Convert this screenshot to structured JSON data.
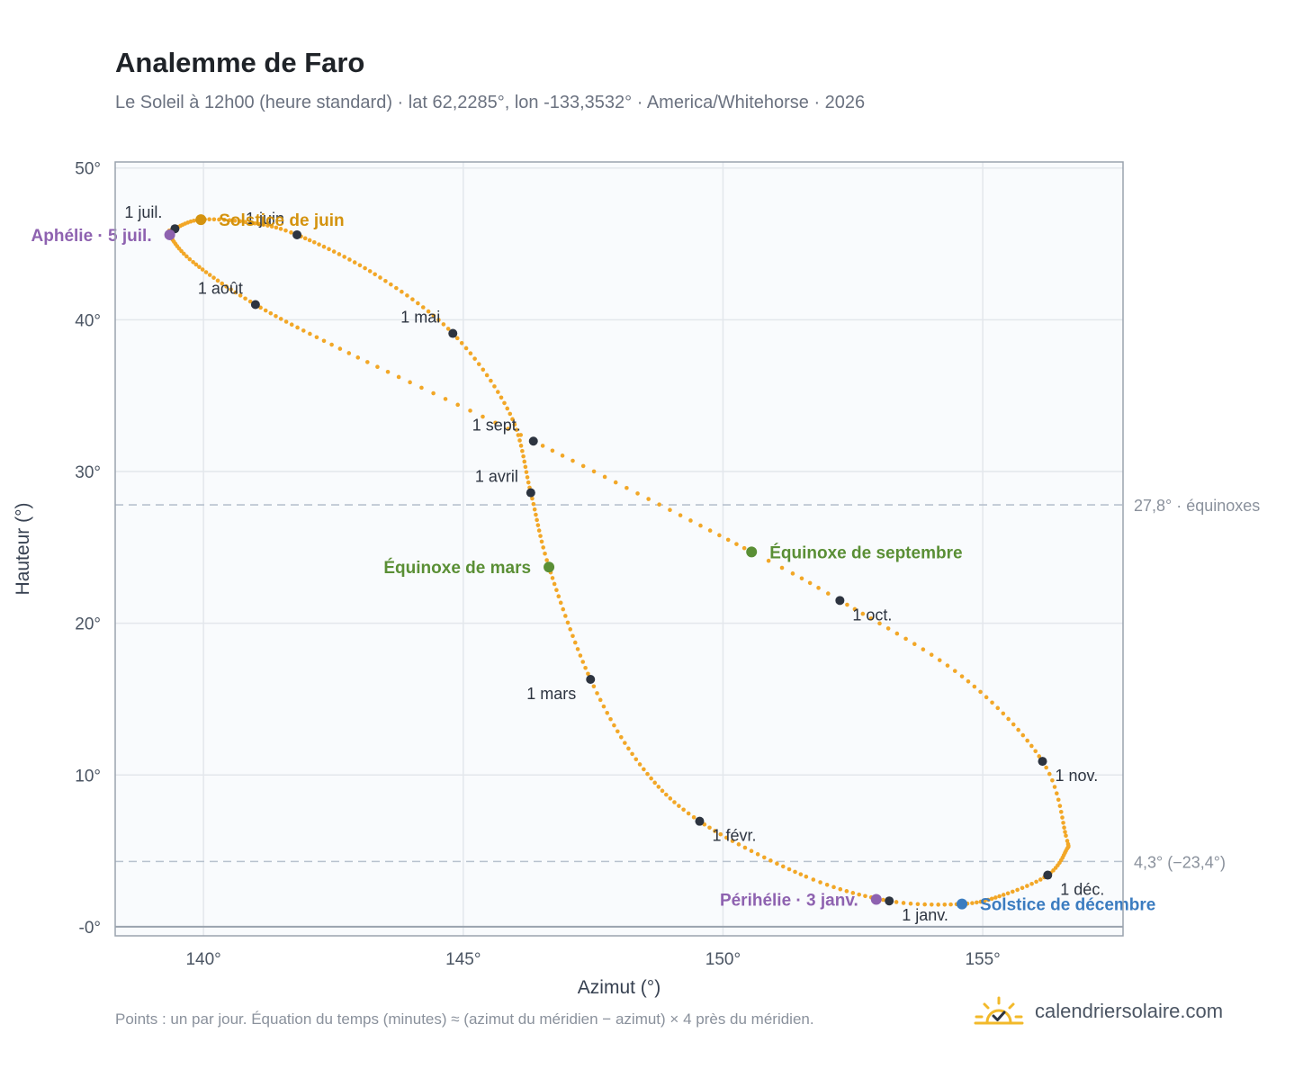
{
  "title": "Analemme de Faro",
  "subtitle": "Le Soleil à 12h00 (heure standard) · lat 62,2285°, lon -133,3532° · America/Whitehorse · 2026",
  "footnote": "Points : un par jour. Équation du temps (minutes) ≈ (azimut du méridien − azimut) × 4 près du méridien.",
  "brand": {
    "name": "calendriersolaire.com",
    "icon": "sun-check-icon"
  },
  "colors": {
    "curve": "#f2a727",
    "month_marker": "#2d3440",
    "solstice_june": "#d4930f",
    "solstice_december": "#3b7cc0",
    "equinox": "#5a8f35",
    "apsis": "#8e62b0",
    "reference_line": "#b8c2ce",
    "plot_bg": "#f9fbfd",
    "grid": "#e3e7ec"
  },
  "chart_data": {
    "type": "scatter",
    "title": "Analemme de Faro",
    "xlabel": "Azimut (°)",
    "ylabel": "Hauteur (°)",
    "xlim": [
      138.3,
      157.7
    ],
    "ylim": [
      -0.6,
      50.4
    ],
    "xticks": [
      140,
      145,
      150,
      155
    ],
    "xtick_labels": [
      "140°",
      "145°",
      "150°",
      "155°"
    ],
    "yticks": [
      0,
      10,
      20,
      30,
      40,
      50
    ],
    "ytick_labels": [
      "-0°",
      "10°",
      "20°",
      "30°",
      "40°",
      "50°"
    ],
    "grid": true,
    "curve_anchors": [
      {
        "doy": 1,
        "az": 153.2,
        "alt": 1.7
      },
      {
        "doy": 14,
        "az": 151.6,
        "alt": 3.3
      },
      {
        "doy": 32,
        "az": 149.55,
        "alt": 6.95
      },
      {
        "doy": 46,
        "az": 148.4,
        "alt": 10.7
      },
      {
        "doy": 60,
        "az": 147.45,
        "alt": 16.3
      },
      {
        "doy": 78,
        "az": 146.65,
        "alt": 23.7
      },
      {
        "doy": 91,
        "az": 146.3,
        "alt": 28.6
      },
      {
        "doy": 106,
        "az": 145.9,
        "alt": 33.8
      },
      {
        "doy": 121,
        "az": 144.8,
        "alt": 39.1
      },
      {
        "doy": 136,
        "az": 143.3,
        "alt": 43.0
      },
      {
        "doy": 152,
        "az": 141.8,
        "alt": 45.6
      },
      {
        "doy": 162,
        "az": 140.9,
        "alt": 46.4
      },
      {
        "doy": 172,
        "az": 139.95,
        "alt": 46.6
      },
      {
        "doy": 182,
        "az": 139.45,
        "alt": 46.0
      },
      {
        "doy": 186,
        "az": 139.35,
        "alt": 45.6
      },
      {
        "doy": 198,
        "az": 139.8,
        "alt": 43.8
      },
      {
        "doy": 213,
        "az": 141.0,
        "alt": 41.0
      },
      {
        "doy": 228,
        "az": 142.8,
        "alt": 37.8
      },
      {
        "doy": 244,
        "az": 146.35,
        "alt": 32.0
      },
      {
        "doy": 266,
        "az": 150.55,
        "alt": 24.7
      },
      {
        "doy": 274,
        "az": 152.25,
        "alt": 21.5
      },
      {
        "doy": 289,
        "az": 154.6,
        "alt": 16.5
      },
      {
        "doy": 305,
        "az": 156.15,
        "alt": 10.9
      },
      {
        "doy": 318,
        "az": 156.6,
        "alt": 6.0
      },
      {
        "doy": 325,
        "az": 156.6,
        "alt": 5.0
      },
      {
        "doy": 335,
        "az": 156.25,
        "alt": 3.4
      },
      {
        "doy": 345,
        "az": 155.4,
        "alt": 2.1
      },
      {
        "doy": 355,
        "az": 154.6,
        "alt": 1.5
      },
      {
        "doy": 366,
        "az": 153.2,
        "alt": 1.7
      }
    ],
    "month_markers": [
      {
        "label": "1 janv.",
        "az": 153.2,
        "alt": 1.7,
        "pos": "below-right"
      },
      {
        "label": "1 févr.",
        "az": 149.55,
        "alt": 6.95,
        "pos": "below-right"
      },
      {
        "label": "1 mars",
        "az": 147.45,
        "alt": 16.3,
        "pos": "below-left"
      },
      {
        "label": "1 avril",
        "az": 146.3,
        "alt": 28.6,
        "pos": "above-left"
      },
      {
        "label": "1 mai",
        "az": 144.8,
        "alt": 39.1,
        "pos": "above-left"
      },
      {
        "label": "1 juin",
        "az": 141.8,
        "alt": 45.6,
        "pos": "above-left"
      },
      {
        "label": "1 juil.",
        "az": 139.45,
        "alt": 46.0,
        "pos": "above-left"
      },
      {
        "label": "1 août",
        "az": 141.0,
        "alt": 41.0,
        "pos": "above-left"
      },
      {
        "label": "1 sept.",
        "az": 146.35,
        "alt": 32.0,
        "pos": "above-left"
      },
      {
        "label": "1 oct.",
        "az": 152.25,
        "alt": 21.5,
        "pos": "below-right"
      },
      {
        "label": "1 nov.",
        "az": 156.15,
        "alt": 10.9,
        "pos": "below-right"
      },
      {
        "label": "1 déc.",
        "az": 156.25,
        "alt": 3.4,
        "pos": "below-right"
      }
    ],
    "events": [
      {
        "label": "Solstice de juin",
        "az": 139.95,
        "alt": 46.6,
        "color": "#d4930f",
        "side": "right"
      },
      {
        "label": "Aphélie · 5 juil.",
        "az": 139.35,
        "alt": 45.6,
        "color": "#8e62b0",
        "side": "left"
      },
      {
        "label": "Équinoxe de mars",
        "az": 146.65,
        "alt": 23.7,
        "color": "#5a8f35",
        "side": "left"
      },
      {
        "label": "Équinoxe de septembre",
        "az": 150.55,
        "alt": 24.7,
        "color": "#5a8f35",
        "side": "right"
      },
      {
        "label": "Périhélie · 3 janv.",
        "az": 152.95,
        "alt": 1.8,
        "color": "#8e62b0",
        "side": "left"
      },
      {
        "label": "Solstice de décembre",
        "az": 154.6,
        "alt": 1.5,
        "color": "#3b7cc0",
        "side": "right"
      }
    ],
    "reference_lines": [
      {
        "alt": 27.8,
        "label": "27,8° · équinoxes"
      },
      {
        "alt": 4.3,
        "label": "4,3° (−23,4°)"
      }
    ]
  }
}
